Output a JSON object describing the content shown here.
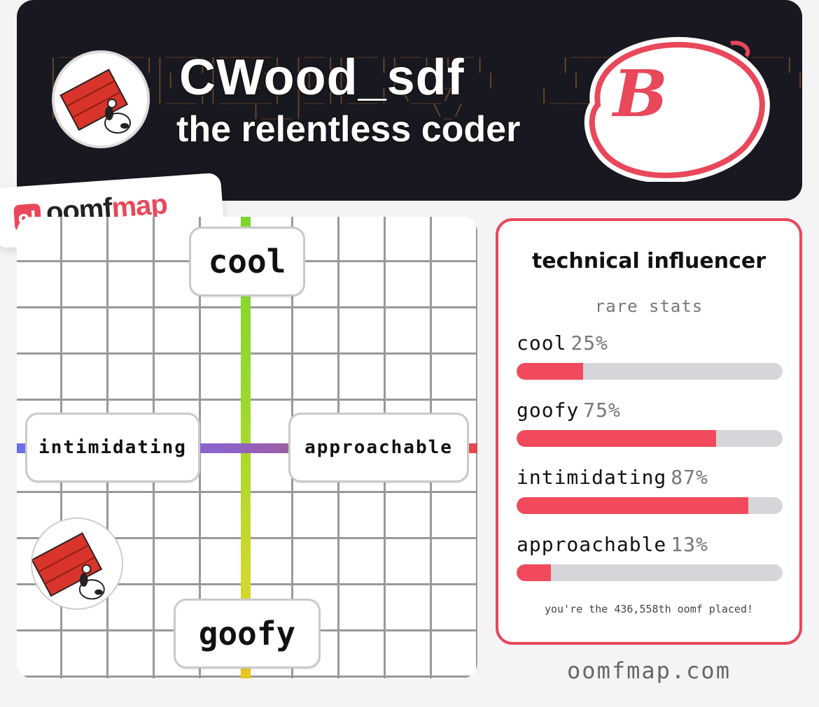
{
  "header": {
    "username": "CWood_sdf",
    "tagline": "the relentless coder",
    "grade": "B",
    "avatar_icon": "snoopy-doghouse-avatar"
  },
  "logo": {
    "badge": "o!",
    "part1": "oomf",
    "part2": "map"
  },
  "map": {
    "top_label": "cool",
    "bottom_label": "goofy",
    "left_label": "intimidating",
    "right_label": "approachable",
    "avatar_icon": "snoopy-doghouse-avatar"
  },
  "card": {
    "title": "technical influencer",
    "subtitle": "rare stats",
    "stats": [
      {
        "label": "cool",
        "pct": "25%",
        "value": 0.25
      },
      {
        "label": "goofy",
        "pct": "75%",
        "value": 0.75
      },
      {
        "label": "intimidating",
        "pct": "87%",
        "value": 0.87
      },
      {
        "label": "approachable",
        "pct": "13%",
        "value": 0.13
      }
    ],
    "footer": "you're the 436,558th oomf placed!"
  },
  "site": "oomfmap.com",
  "colors": {
    "accent": "#e9475a",
    "bar_fill": "#f14a5c",
    "bar_track": "#d6d6da",
    "header_bg": "#181820"
  }
}
